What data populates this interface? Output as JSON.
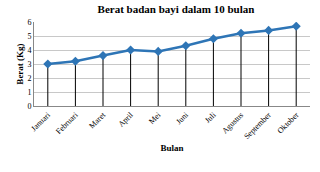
{
  "chart_data": {
    "type": "line",
    "title": "Berat badan bayi dalam 10 bulan",
    "x_label": "Bulan",
    "y_label": "Berat (Kg)",
    "categories": [
      "Januari",
      "Februari",
      "Maret",
      "April",
      "Mei",
      "Juni",
      "Juli",
      "Agustus",
      "September",
      "Oktober"
    ],
    "values": [
      3.0,
      3.2,
      3.6,
      4.0,
      3.9,
      4.3,
      4.8,
      5.2,
      5.4,
      5.7
    ],
    "color": "#2e75b6",
    "marker": "diamond",
    "ylim": [
      0,
      6
    ],
    "yticks": [
      0,
      1,
      2,
      3,
      4,
      5,
      6
    ],
    "grid": true
  }
}
